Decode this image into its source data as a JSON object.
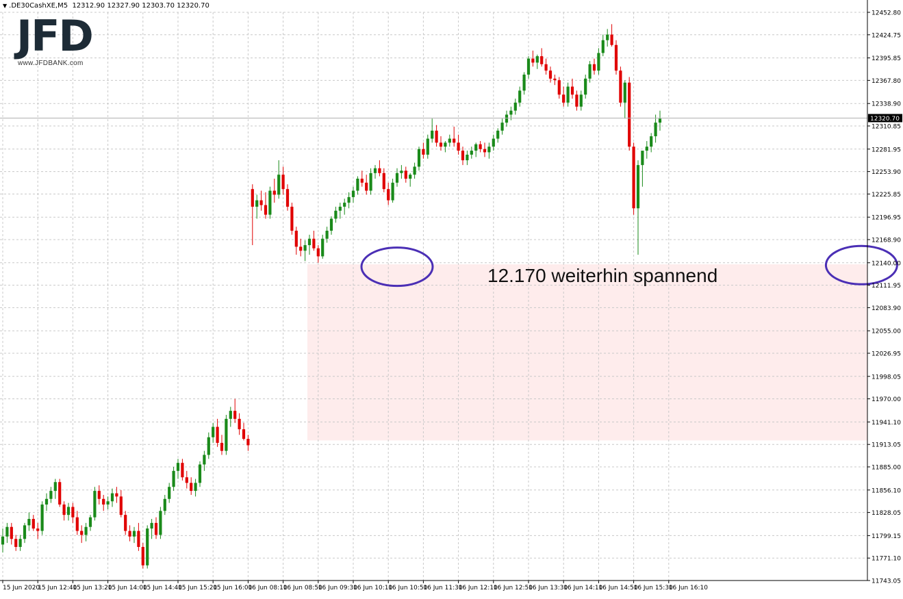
{
  "header": {
    "symbol": ".DE30CashXE,M5",
    "ohlc": "12312.90 12327.90 12303.70 12320.70"
  },
  "logo": {
    "mark": "JFD",
    "url": "www.JFDBANK.com"
  },
  "colors": {
    "bull": "#1a8a1a",
    "bear": "#e00000",
    "zone_fill": "#fde4e4",
    "ellipse": "#4b2fb5",
    "grid": "#c8c8c8",
    "price_line": "#b0b0b0"
  },
  "chart_data": {
    "type": "candlestick",
    "timeframe": "M5",
    "ylim": [
      11743.05,
      12452.8
    ],
    "y_ticks": [
      "12452.80",
      "12424.75",
      "12395.85",
      "12367.80",
      "12338.90",
      "12310.85",
      "12281.95",
      "12253.90",
      "12225.85",
      "12196.95",
      "12168.90",
      "12140.00",
      "12111.95",
      "12083.90",
      "12055.00",
      "12026.95",
      "11998.05",
      "11970.00",
      "11941.10",
      "11913.05",
      "11885.00",
      "11856.10",
      "11828.05",
      "11799.15",
      "11771.10",
      "11743.05"
    ],
    "x_ticks": [
      "15 Jun 2020",
      "15 Jun 12:40",
      "15 Jun 13:20",
      "15 Jun 14:00",
      "15 Jun 14:40",
      "15 Jun 15:20",
      "15 Jun 16:00",
      "16 Jun 08:10",
      "16 Jun 08:50",
      "16 Jun 09:30",
      "16 Jun 10:10",
      "16 Jun 10:50",
      "16 Jun 11:30",
      "16 Jun 12:10",
      "16 Jun 12:50",
      "16 Jun 13:30",
      "16 Jun 14:10",
      "16 Jun 14:50",
      "16 Jun 15:30",
      "16 Jun 16:10"
    ],
    "current_price": "12320.70",
    "annotation": "12.170 weiterhin spannend",
    "zone": {
      "from_candle": 70,
      "y_high": 12138,
      "y_low": 11918
    },
    "ellipses": [
      {
        "candle": 90,
        "y": 12135
      },
      {
        "candle": 196,
        "y": 12137
      }
    ],
    "candles": [
      [
        11788,
        11808,
        11778,
        11798
      ],
      [
        11798,
        11815,
        11790,
        11810
      ],
      [
        11810,
        11815,
        11788,
        11795
      ],
      [
        11795,
        11800,
        11780,
        11785
      ],
      [
        11785,
        11800,
        11780,
        11795
      ],
      [
        11795,
        11815,
        11790,
        11812
      ],
      [
        11812,
        11828,
        11805,
        11820
      ],
      [
        11820,
        11825,
        11805,
        11808
      ],
      [
        11808,
        11815,
        11795,
        11805
      ],
      [
        11805,
        11842,
        11800,
        11838
      ],
      [
        11838,
        11852,
        11830,
        11845
      ],
      [
        11845,
        11860,
        11840,
        11855
      ],
      [
        11855,
        11870,
        11845,
        11866
      ],
      [
        11866,
        11870,
        11835,
        11838
      ],
      [
        11838,
        11842,
        11818,
        11825
      ],
      [
        11825,
        11840,
        11818,
        11835
      ],
      [
        11835,
        11840,
        11815,
        11822
      ],
      [
        11822,
        11830,
        11800,
        11805
      ],
      [
        11805,
        11812,
        11790,
        11800
      ],
      [
        11800,
        11815,
        11792,
        11810
      ],
      [
        11810,
        11825,
        11805,
        11822
      ],
      [
        11822,
        11860,
        11818,
        11855
      ],
      [
        11855,
        11862,
        11838,
        11845
      ],
      [
        11845,
        11850,
        11830,
        11838
      ],
      [
        11838,
        11848,
        11832,
        11842
      ],
      [
        11842,
        11858,
        11835,
        11852
      ],
      [
        11852,
        11860,
        11840,
        11848
      ],
      [
        11848,
        11856,
        11822,
        11825
      ],
      [
        11825,
        11830,
        11800,
        11805
      ],
      [
        11805,
        11812,
        11792,
        11798
      ],
      [
        11798,
        11810,
        11790,
        11805
      ],
      [
        11805,
        11815,
        11780,
        11785
      ],
      [
        11785,
        11790,
        11758,
        11762
      ],
      [
        11762,
        11812,
        11758,
        11808
      ],
      [
        11808,
        11820,
        11795,
        11815
      ],
      [
        11815,
        11822,
        11795,
        11800
      ],
      [
        11800,
        11835,
        11795,
        11830
      ],
      [
        11830,
        11850,
        11825,
        11845
      ],
      [
        11845,
        11865,
        11840,
        11860
      ],
      [
        11860,
        11885,
        11855,
        11880
      ],
      [
        11880,
        11895,
        11870,
        11890
      ],
      [
        11890,
        11895,
        11868,
        11872
      ],
      [
        11872,
        11880,
        11858,
        11865
      ],
      [
        11865,
        11872,
        11850,
        11855
      ],
      [
        11855,
        11870,
        11848,
        11865
      ],
      [
        11865,
        11892,
        11860,
        11888
      ],
      [
        11888,
        11905,
        11880,
        11900
      ],
      [
        11900,
        11928,
        11895,
        11922
      ],
      [
        11922,
        11940,
        11915,
        11935
      ],
      [
        11935,
        11945,
        11910,
        11915
      ],
      [
        11915,
        11925,
        11900,
        11905
      ],
      [
        11905,
        11950,
        11900,
        11945
      ],
      [
        11945,
        11960,
        11935,
        11955
      ],
      [
        11955,
        11970,
        11940,
        11945
      ],
      [
        11945,
        11952,
        11925,
        11932
      ],
      [
        11932,
        11940,
        11918,
        11920
      ],
      [
        11920,
        11925,
        11905,
        11912
      ],
      [
        12232,
        12238,
        12162,
        12210
      ],
      [
        12210,
        12225,
        12195,
        12218
      ],
      [
        12218,
        12230,
        12205,
        12212
      ],
      [
        12212,
        12228,
        12195,
        12200
      ],
      [
        12200,
        12235,
        12195,
        12230
      ],
      [
        12230,
        12245,
        12215,
        12225
      ],
      [
        12225,
        12268,
        12220,
        12250
      ],
      [
        12250,
        12260,
        12225,
        12232
      ],
      [
        12232,
        12238,
        12205,
        12210
      ],
      [
        12210,
        12215,
        12175,
        12180
      ],
      [
        12180,
        12185,
        12150,
        12160
      ],
      [
        12160,
        12170,
        12148,
        12155
      ],
      [
        12155,
        12168,
        12142,
        12162
      ],
      [
        12162,
        12175,
        12150,
        12170
      ],
      [
        12170,
        12180,
        12155,
        12158
      ],
      [
        12158,
        12162,
        12140,
        12148
      ],
      [
        12148,
        12175,
        12145,
        12170
      ],
      [
        12170,
        12185,
        12165,
        12180
      ],
      [
        12180,
        12198,
        12175,
        12195
      ],
      [
        12195,
        12210,
        12190,
        12205
      ],
      [
        12205,
        12215,
        12195,
        12210
      ],
      [
        12210,
        12220,
        12200,
        12215
      ],
      [
        12215,
        12228,
        12208,
        12222
      ],
      [
        12222,
        12235,
        12215,
        12230
      ],
      [
        12230,
        12248,
        12225,
        12245
      ],
      [
        12245,
        12255,
        12235,
        12240
      ],
      [
        12240,
        12250,
        12225,
        12230
      ],
      [
        12230,
        12258,
        12225,
        12252
      ],
      [
        12252,
        12262,
        12245,
        12258
      ],
      [
        12258,
        12268,
        12248,
        12252
      ],
      [
        12252,
        12258,
        12228,
        12232
      ],
      [
        12232,
        12240,
        12212,
        12218
      ],
      [
        12218,
        12245,
        12215,
        12240
      ],
      [
        12240,
        12258,
        12235,
        12252
      ],
      [
        12252,
        12262,
        12245,
        12255
      ],
      [
        12255,
        12260,
        12240,
        12245
      ],
      [
        12245,
        12252,
        12235,
        12250
      ],
      [
        12250,
        12265,
        12245,
        12260
      ],
      [
        12260,
        12285,
        12255,
        12282
      ],
      [
        12282,
        12290,
        12270,
        12275
      ],
      [
        12275,
        12300,
        12270,
        12295
      ],
      [
        12295,
        12320,
        12290,
        12305
      ],
      [
        12305,
        12312,
        12285,
        12290
      ],
      [
        12290,
        12298,
        12280,
        12285
      ],
      [
        12285,
        12292,
        12278,
        12290
      ],
      [
        12290,
        12300,
        12285,
        12295
      ],
      [
        12295,
        12310,
        12285,
        12290
      ],
      [
        12290,
        12300,
        12275,
        12280
      ],
      [
        12280,
        12285,
        12262,
        12268
      ],
      [
        12268,
        12280,
        12262,
        12275
      ],
      [
        12275,
        12285,
        12270,
        12280
      ],
      [
        12280,
        12290,
        12272,
        12288
      ],
      [
        12288,
        12292,
        12278,
        12282
      ],
      [
        12282,
        12290,
        12272,
        12278
      ],
      [
        12278,
        12290,
        12270,
        12285
      ],
      [
        12285,
        12300,
        12280,
        12295
      ],
      [
        12295,
        12308,
        12290,
        12305
      ],
      [
        12305,
        12320,
        12300,
        12315
      ],
      [
        12315,
        12330,
        12310,
        12325
      ],
      [
        12325,
        12335,
        12318,
        12330
      ],
      [
        12330,
        12345,
        12325,
        12340
      ],
      [
        12340,
        12360,
        12335,
        12355
      ],
      [
        12355,
        12378,
        12350,
        12375
      ],
      [
        12375,
        12398,
        12370,
        12395
      ],
      [
        12395,
        12405,
        12385,
        12390
      ],
      [
        12390,
        12400,
        12382,
        12398
      ],
      [
        12398,
        12408,
        12385,
        12388
      ],
      [
        12388,
        12395,
        12375,
        12380
      ],
      [
        12380,
        12385,
        12365,
        12370
      ],
      [
        12370,
        12375,
        12362,
        12368
      ],
      [
        12368,
        12372,
        12345,
        12350
      ],
      [
        12350,
        12360,
        12335,
        12340
      ],
      [
        12340,
        12365,
        12335,
        12360
      ],
      [
        12360,
        12370,
        12345,
        12350
      ],
      [
        12350,
        12355,
        12330,
        12335
      ],
      [
        12335,
        12355,
        12330,
        12350
      ],
      [
        12350,
        12375,
        12345,
        12370
      ],
      [
        12370,
        12392,
        12365,
        12388
      ],
      [
        12388,
        12395,
        12375,
        12380
      ],
      [
        12380,
        12408,
        12375,
        12402
      ],
      [
        12402,
        12425,
        12398,
        12418
      ],
      [
        12418,
        12432,
        12410,
        12425
      ],
      [
        12425,
        12438,
        12410,
        12412
      ],
      [
        12412,
        12418,
        12375,
        12380
      ],
      [
        12380,
        12385,
        12335,
        12340
      ],
      [
        12340,
        12368,
        12320,
        12365
      ],
      [
        12365,
        12372,
        12280,
        12285
      ],
      [
        12285,
        12290,
        12200,
        12208
      ],
      [
        12208,
        12268,
        12150,
        12262
      ],
      [
        12262,
        12275,
        12235,
        12280
      ],
      [
        12280,
        12292,
        12270,
        12285
      ],
      [
        12285,
        12302,
        12278,
        12298
      ],
      [
        12298,
        12325,
        12290,
        12315
      ],
      [
        12315,
        12330,
        12305,
        12320
      ]
    ]
  }
}
